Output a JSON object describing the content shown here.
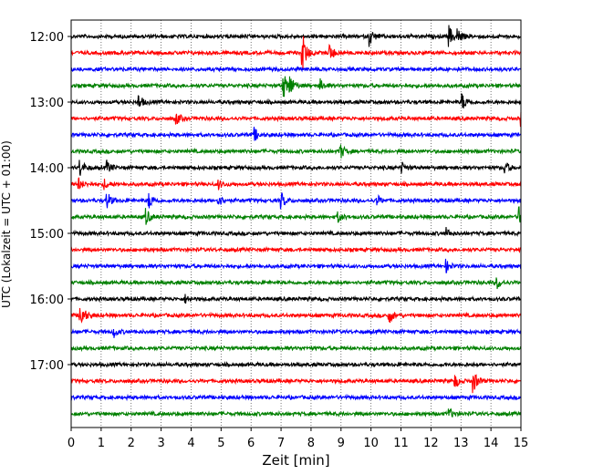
{
  "chart_data": {
    "type": "line",
    "title": "",
    "xlabel": "Zeit  [min]",
    "ylabel": "UTC (Lokalzeit = UTC + 01:00)",
    "xlim": [
      0,
      15
    ],
    "x_ticks": [
      0,
      1,
      2,
      3,
      4,
      5,
      6,
      7,
      8,
      9,
      10,
      11,
      12,
      13,
      14,
      15
    ],
    "x_tick_labels": [
      "0",
      "1",
      "2",
      "3",
      "4",
      "5",
      "6",
      "7",
      "8",
      "9",
      "10",
      "11",
      "12",
      "13",
      "14",
      "15"
    ],
    "y_tick_labels": [
      "12:00",
      "13:00",
      "14:00",
      "15:00",
      "16:00",
      "17:00"
    ],
    "grid": "vertical dotted",
    "legend": "none",
    "color_cycle": [
      "#000000",
      "#ff0000",
      "#0000ff",
      "#008000"
    ],
    "traces": [
      {
        "start": "12:00",
        "color": "#000000",
        "events": [
          {
            "t": 9.95,
            "amp": 0.9
          },
          {
            "t": 12.6,
            "amp": 1.0
          },
          {
            "t": 12.9,
            "amp": 0.7
          }
        ]
      },
      {
        "start": "12:15",
        "color": "#ff0000",
        "events": [
          {
            "t": 7.7,
            "amp": 2.2
          },
          {
            "t": 8.6,
            "amp": 1.0
          }
        ]
      },
      {
        "start": "12:30",
        "color": "#0000ff",
        "events": []
      },
      {
        "start": "12:45",
        "color": "#008000",
        "events": [
          {
            "t": 7.05,
            "amp": 1.6
          },
          {
            "t": 7.3,
            "amp": 0.9
          },
          {
            "t": 8.3,
            "amp": 0.6
          }
        ]
      },
      {
        "start": "13:00",
        "color": "#000000",
        "events": [
          {
            "t": 2.25,
            "amp": 0.7
          },
          {
            "t": 13.05,
            "amp": 0.8
          }
        ]
      },
      {
        "start": "13:15",
        "color": "#ff0000",
        "events": [
          {
            "t": 3.5,
            "amp": 0.6
          },
          {
            "t": 15.0,
            "amp": 1.0
          }
        ]
      },
      {
        "start": "13:30",
        "color": "#0000ff",
        "events": [
          {
            "t": 6.1,
            "amp": 0.7
          }
        ]
      },
      {
        "start": "13:45",
        "color": "#008000",
        "events": [
          {
            "t": 8.95,
            "amp": 0.9
          }
        ]
      },
      {
        "start": "14:00",
        "color": "#000000",
        "events": [
          {
            "t": 0.3,
            "amp": 0.8
          },
          {
            "t": 1.2,
            "amp": 0.6
          },
          {
            "t": 11.0,
            "amp": 0.6
          },
          {
            "t": 14.45,
            "amp": 0.7
          }
        ]
      },
      {
        "start": "14:15",
        "color": "#ff0000",
        "events": [
          {
            "t": 0.25,
            "amp": 0.6
          },
          {
            "t": 1.1,
            "amp": 0.5
          },
          {
            "t": 4.9,
            "amp": 0.5
          }
        ]
      },
      {
        "start": "14:30",
        "color": "#0000ff",
        "events": [
          {
            "t": 1.2,
            "amp": 0.8
          },
          {
            "t": 2.6,
            "amp": 0.8
          },
          {
            "t": 4.9,
            "amp": 0.6
          },
          {
            "t": 7.0,
            "amp": 0.8
          },
          {
            "t": 10.2,
            "amp": 0.5
          }
        ]
      },
      {
        "start": "14:45",
        "color": "#008000",
        "events": [
          {
            "t": 2.5,
            "amp": 0.8
          },
          {
            "t": 8.9,
            "amp": 0.5
          },
          {
            "t": 14.9,
            "amp": 1.2
          }
        ]
      },
      {
        "start": "15:00",
        "color": "#000000",
        "events": [
          {
            "t": 12.5,
            "amp": 0.5
          }
        ]
      },
      {
        "start": "15:15",
        "color": "#ff0000",
        "events": []
      },
      {
        "start": "15:30",
        "color": "#0000ff",
        "events": [
          {
            "t": 12.5,
            "amp": 0.6
          }
        ]
      },
      {
        "start": "15:45",
        "color": "#008000",
        "events": [
          {
            "t": 14.2,
            "amp": 0.6
          }
        ]
      },
      {
        "start": "16:00",
        "color": "#000000",
        "events": [
          {
            "t": 3.8,
            "amp": 0.4
          }
        ]
      },
      {
        "start": "16:15",
        "color": "#ff0000",
        "events": [
          {
            "t": 0.3,
            "amp": 1.5
          },
          {
            "t": 10.6,
            "amp": 0.8
          }
        ]
      },
      {
        "start": "16:30",
        "color": "#0000ff",
        "events": [
          {
            "t": 1.4,
            "amp": 0.6
          }
        ]
      },
      {
        "start": "16:45",
        "color": "#008000",
        "events": []
      },
      {
        "start": "17:00",
        "color": "#000000",
        "events": []
      },
      {
        "start": "17:15",
        "color": "#ff0000",
        "events": [
          {
            "t": 12.8,
            "amp": 0.7
          },
          {
            "t": 13.4,
            "amp": 1.2
          }
        ]
      },
      {
        "start": "17:30",
        "color": "#0000ff",
        "events": []
      },
      {
        "start": "17:45",
        "color": "#008000",
        "events": [
          {
            "t": 12.6,
            "amp": 0.5
          }
        ]
      }
    ]
  }
}
